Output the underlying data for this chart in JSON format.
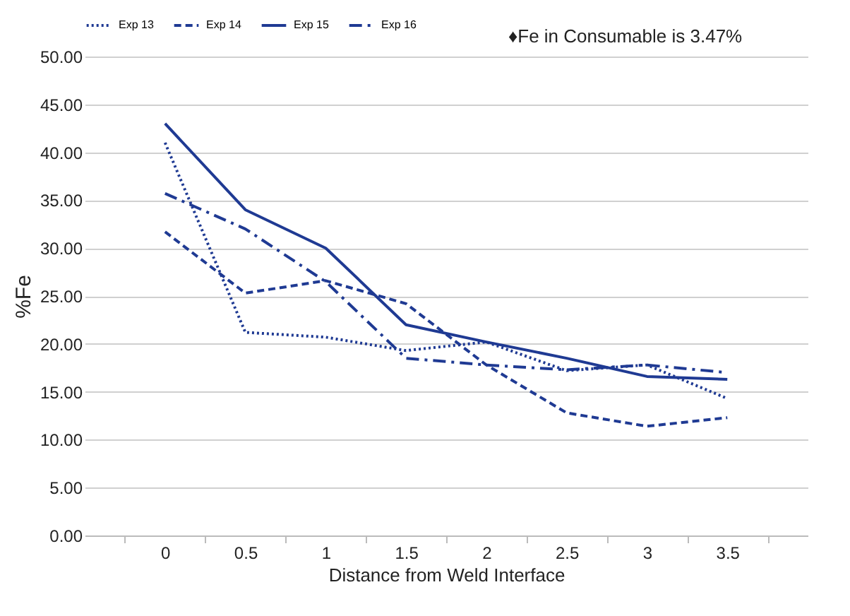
{
  "chart_data": {
    "type": "line",
    "xlabel": "Distance from Weld Interface",
    "ylabel": "%Fe",
    "categories": [
      "0",
      "0.5",
      "1",
      "1.5",
      "2",
      "2.5",
      "3",
      "3.5"
    ],
    "series": [
      {
        "name": "Exp 13",
        "color": "#1f3a93",
        "line_style": "dotted",
        "values": [
          41,
          21.2,
          20.7,
          19.3,
          20.2,
          17.2,
          17.8,
          14.3
        ]
      },
      {
        "name": "Exp 14",
        "color": "#1f3a93",
        "line_style": "dashed",
        "values": [
          31.7,
          25.3,
          26.6,
          24.2,
          17.8,
          12.8,
          11.4,
          12.3
        ]
      },
      {
        "name": "Exp 15",
        "color": "#1f3a93",
        "line_style": "solid",
        "values": [
          43,
          34,
          30,
          22,
          20.2,
          18.5,
          16.6,
          16.3
        ]
      },
      {
        "name": "Exp 16",
        "color": "#1f3a93",
        "line_style": "dashdot",
        "values": [
          35.7,
          32,
          26.5,
          18.5,
          17.8,
          17.3,
          17.8,
          17.0
        ]
      }
    ],
    "ylim": [
      0,
      50
    ],
    "yticks": [
      {
        "value": 0,
        "label": "0.00"
      },
      {
        "value": 5,
        "label": "5.00"
      },
      {
        "value": 10,
        "label": "10.00"
      },
      {
        "value": 15,
        "label": "15.00"
      },
      {
        "value": 20,
        "label": "20.00"
      },
      {
        "value": 25,
        "label": "25.00"
      },
      {
        "value": 30,
        "label": "30.00"
      },
      {
        "value": 35,
        "label": "35.00"
      },
      {
        "value": 40,
        "label": "40.00"
      },
      {
        "value": 45,
        "label": "45.00"
      },
      {
        "value": 50,
        "label": "50.00"
      }
    ],
    "annotations": [
      "♦Fe in Consumable is 3.47%"
    ],
    "grid": "y",
    "legend": "top",
    "marker": "none"
  }
}
